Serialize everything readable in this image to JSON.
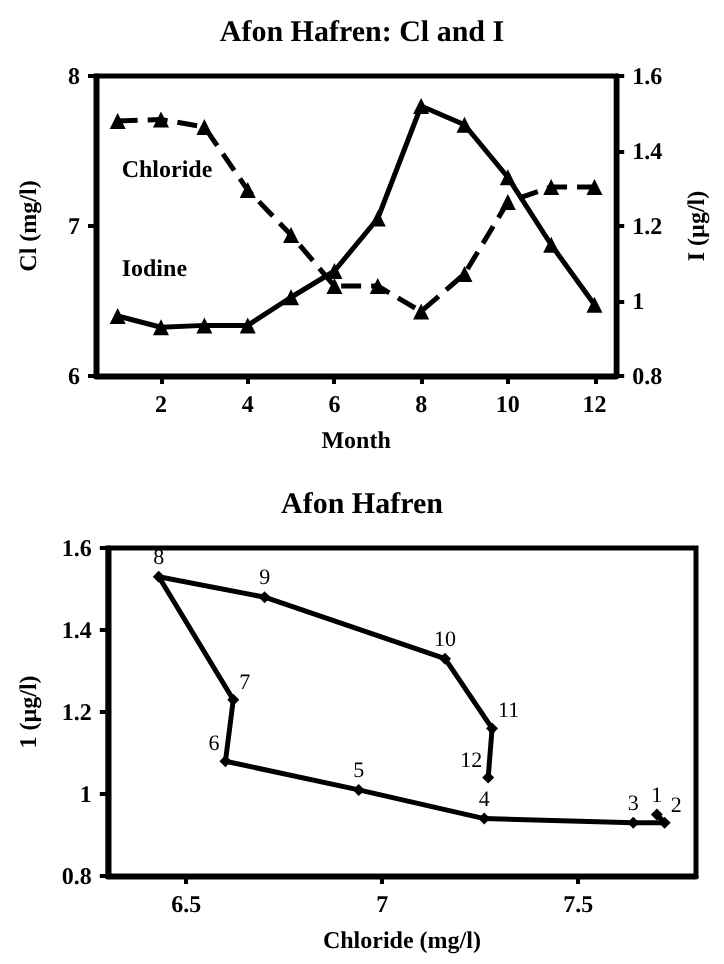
{
  "chart_data": [
    {
      "type": "line",
      "title": "Afon Hafren: Cl and I",
      "xlabel": "Month",
      "ylabel": "Cl (mg/l)",
      "y2label": "I (µg/l)",
      "x": [
        1,
        2,
        3,
        4,
        5,
        6,
        7,
        8,
        9,
        10,
        11,
        12
      ],
      "marker": "triangle",
      "grid": false,
      "legend": false,
      "xlim": [
        0.5,
        12.5
      ],
      "xticks": [
        2,
        4,
        6,
        8,
        10,
        12
      ],
      "ylim": [
        6,
        8
      ],
      "yticks": [
        6,
        7,
        8
      ],
      "y2lim": [
        0.8,
        1.6
      ],
      "y2ticks": [
        0.8,
        1,
        1.2,
        1.4,
        1.6
      ],
      "series": [
        {
          "name": "Chloride",
          "color": "#000000",
          "line_style": "dashed",
          "axis": "y",
          "values": [
            7.7,
            7.71,
            7.66,
            7.24,
            6.94,
            6.6,
            6.6,
            6.43,
            6.68,
            7.16,
            7.26,
            7.26
          ]
        },
        {
          "name": "Iodine",
          "color": "#000000",
          "line_style": "solid",
          "axis": "y2",
          "values": [
            0.96,
            0.93,
            0.935,
            0.935,
            1.01,
            1.08,
            1.22,
            1.52,
            1.47,
            1.33,
            1.15,
            0.99
          ]
        }
      ]
    },
    {
      "type": "line",
      "title": "Afon Hafren",
      "xlabel": "Chloride (mg/l)",
      "ylabel": "1 (µg/l)",
      "marker": "diamond",
      "grid": false,
      "legend": false,
      "xlim": [
        6.3,
        7.8
      ],
      "xticks": [
        6.5,
        7,
        7.5
      ],
      "ylim": [
        0.8,
        1.6
      ],
      "yticks": [
        0.8,
        1,
        1.2,
        1.4,
        1.6
      ],
      "series": [
        {
          "color": "#000000",
          "line_style": "solid",
          "x": [
            7.7,
            7.72,
            7.64,
            7.26,
            6.94,
            6.6,
            6.62,
            6.43,
            6.7,
            7.16,
            7.28,
            7.27
          ],
          "values": [
            0.95,
            0.93,
            0.93,
            0.94,
            1.01,
            1.08,
            1.23,
            1.53,
            1.48,
            1.33,
            1.16,
            1.04
          ]
        }
      ],
      "annotations": [
        {
          "text": "1",
          "x": 7.7,
          "y": 0.95
        },
        {
          "text": "2",
          "x": 7.72,
          "y": 0.93
        },
        {
          "text": "3",
          "x": 7.64,
          "y": 0.93
        },
        {
          "text": "4",
          "x": 7.26,
          "y": 0.94
        },
        {
          "text": "5",
          "x": 6.94,
          "y": 1.01
        },
        {
          "text": "6",
          "x": 6.6,
          "y": 1.08
        },
        {
          "text": "7",
          "x": 6.62,
          "y": 1.23
        },
        {
          "text": "8",
          "x": 6.43,
          "y": 1.53
        },
        {
          "text": "9",
          "x": 6.7,
          "y": 1.48
        },
        {
          "text": "10",
          "x": 7.16,
          "y": 1.33
        },
        {
          "text": "11",
          "x": 7.28,
          "y": 1.16
        },
        {
          "text": "12",
          "x": 7.27,
          "y": 1.04
        }
      ]
    }
  ]
}
